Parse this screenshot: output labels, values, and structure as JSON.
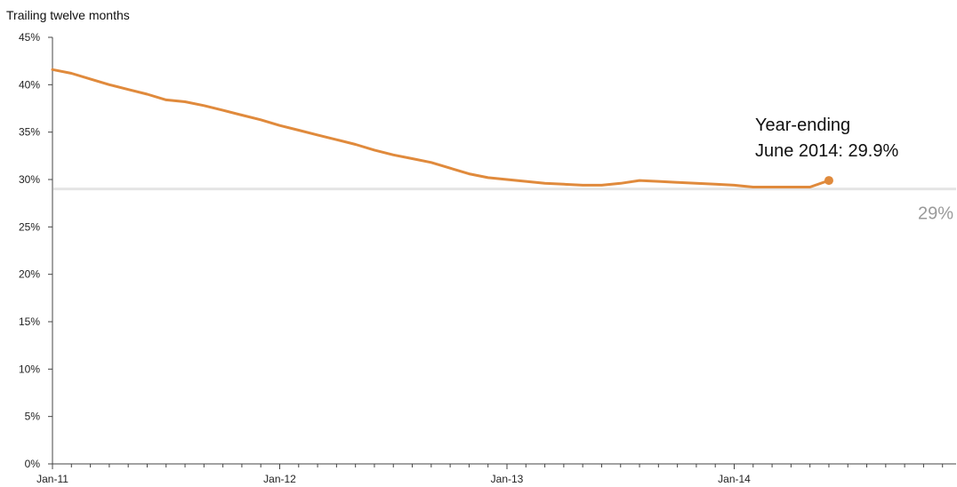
{
  "chart_data": {
    "type": "line",
    "subtitle": "Trailing twelve months",
    "title": "",
    "xlabel": "",
    "ylabel": "",
    "ylim": [
      0,
      45
    ],
    "y_ticks": [
      "0%",
      "5%",
      "10%",
      "15%",
      "20%",
      "25%",
      "30%",
      "35%",
      "40%",
      "45%"
    ],
    "x_tick_labels": [
      "Jan-11",
      "Jan-12",
      "Jan-13",
      "Jan-14"
    ],
    "x_range": [
      "2011-01",
      "2014-12"
    ],
    "grid": false,
    "series": [
      {
        "color": "#e08a3c",
        "x": [
          "2011-01",
          "2011-02",
          "2011-03",
          "2011-04",
          "2011-05",
          "2011-06",
          "2011-07",
          "2011-08",
          "2011-09",
          "2011-10",
          "2011-11",
          "2011-12",
          "2012-01",
          "2012-02",
          "2012-03",
          "2012-04",
          "2012-05",
          "2012-06",
          "2012-07",
          "2012-08",
          "2012-09",
          "2012-10",
          "2012-11",
          "2012-12",
          "2013-01",
          "2013-02",
          "2013-03",
          "2013-04",
          "2013-05",
          "2013-06",
          "2013-07",
          "2013-08",
          "2013-09",
          "2013-10",
          "2013-11",
          "2013-12",
          "2014-01",
          "2014-02",
          "2014-03",
          "2014-04",
          "2014-05",
          "2014-06"
        ],
        "values": [
          41.6,
          41.2,
          40.6,
          40.0,
          39.5,
          39.0,
          38.4,
          38.2,
          37.8,
          37.3,
          36.8,
          36.3,
          35.7,
          35.2,
          34.7,
          34.2,
          33.7,
          33.1,
          32.6,
          32.2,
          31.8,
          31.2,
          30.6,
          30.2,
          30.0,
          29.8,
          29.6,
          29.5,
          29.4,
          29.4,
          29.6,
          29.9,
          29.8,
          29.7,
          29.6,
          29.5,
          29.4,
          29.2,
          29.2,
          29.2,
          29.2,
          29.9
        ]
      }
    ],
    "reference_line": {
      "value": 29,
      "label": "29%",
      "color": "#e4e4e4"
    },
    "annotation": {
      "line1": "Year-ending",
      "line2": "June 2014: 29.9%"
    }
  },
  "colors": {
    "axis": "#444444",
    "text": "#222222",
    "ref_text": "#9a9a9a"
  }
}
